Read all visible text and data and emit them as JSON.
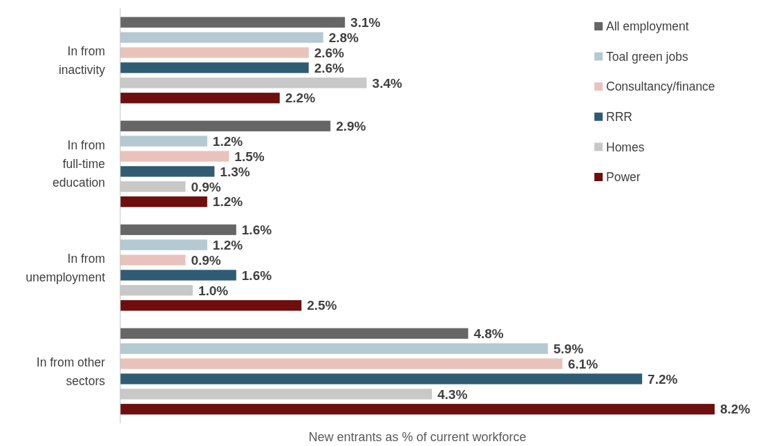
{
  "chart_data": {
    "type": "bar",
    "orientation": "horizontal",
    "xlabel": "New entrants as % of current workforce",
    "categories": [
      "In from inactivity",
      "In from full-time education",
      "In from unemployment",
      "In from other sectors"
    ],
    "legend": "top right",
    "series": [
      {
        "name": "All employment",
        "color": "#666666",
        "values": [
          3.1,
          2.9,
          1.6,
          4.8
        ],
        "value_labels": [
          "3.1%",
          "2.9%",
          "1.6%",
          "4.8%"
        ]
      },
      {
        "name": "Toal green jobs",
        "color": "#b4c9d1",
        "values": [
          2.8,
          1.2,
          1.2,
          5.9
        ],
        "value_labels": [
          "2.8%",
          "1.2%",
          "1.2%",
          "5.9%"
        ]
      },
      {
        "name": "Consultancy/finance",
        "color": "#e8c3bc",
        "values": [
          2.6,
          1.5,
          0.9,
          6.1
        ],
        "value_labels": [
          "2.6%",
          "1.5%",
          "0.9%",
          "6.1%"
        ]
      },
      {
        "name": "RRR",
        "color": "#2f5c74",
        "values": [
          2.6,
          1.3,
          1.6,
          7.2
        ],
        "value_labels": [
          "2.6%",
          "1.3%",
          "1.6%",
          "7.2%"
        ]
      },
      {
        "name": "Homes",
        "color": "#c8c8c8",
        "values": [
          3.4,
          0.9,
          1.0,
          4.3
        ],
        "value_labels": [
          "3.4%",
          "0.9%",
          "1.0%",
          "4.3%"
        ]
      },
      {
        "name": "Power",
        "color": "#6e0e0e",
        "values": [
          2.2,
          1.2,
          2.5,
          8.2
        ],
        "value_labels": [
          "2.2%",
          "1.2%",
          "2.5%",
          "8.2%"
        ]
      }
    ]
  }
}
